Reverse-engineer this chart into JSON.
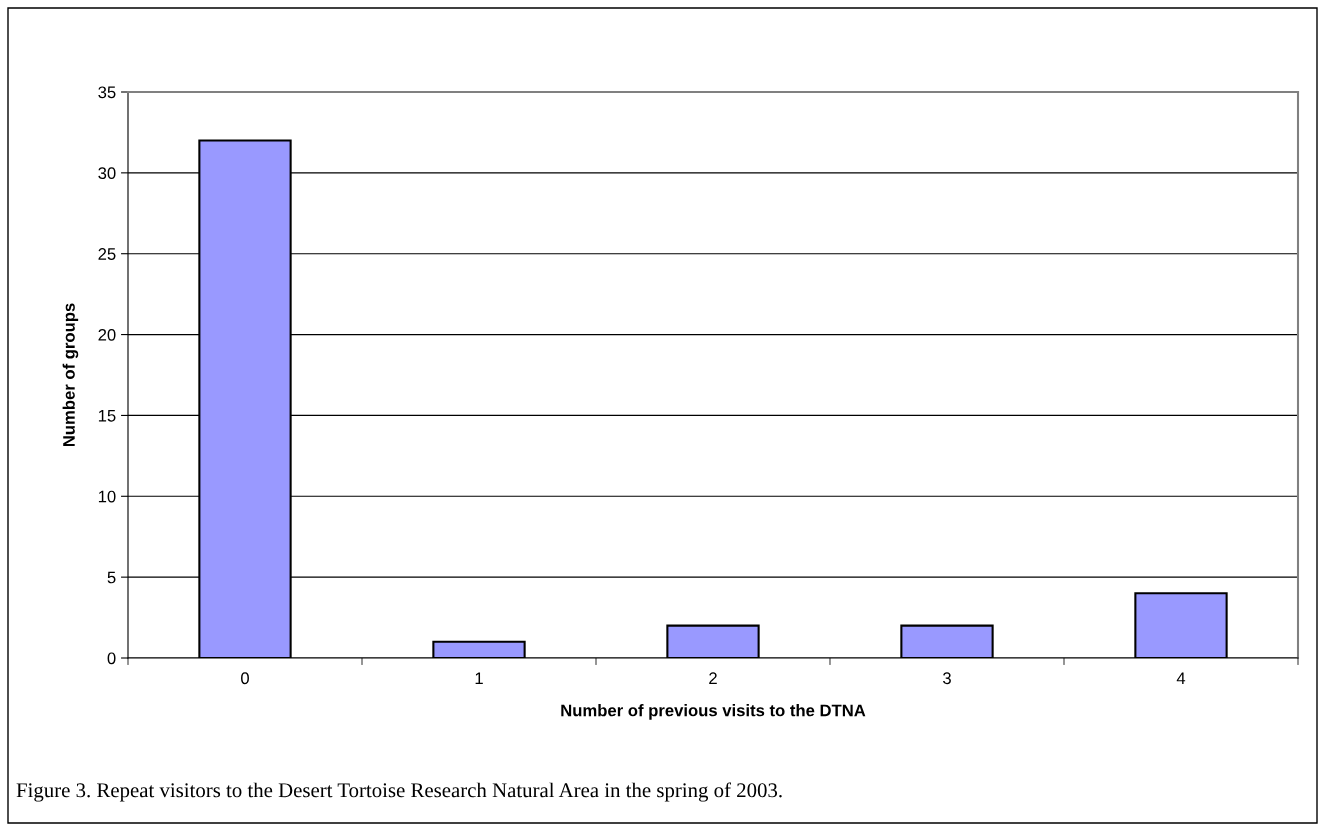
{
  "chart_data": {
    "type": "bar",
    "xlabel": "Number of previous visits to the DTNA",
    "ylabel": "Number of groups",
    "categories": [
      "0",
      "1",
      "2",
      "3",
      "4"
    ],
    "values": [
      32,
      1,
      2,
      2,
      4
    ],
    "color": "#9999ff",
    "ylim": [
      0,
      35
    ],
    "yticks": [
      0,
      5,
      10,
      15,
      20,
      25,
      30,
      35
    ],
    "grid": "y",
    "legend": false,
    "annotations": [
      "Figure 3. Repeat visitors to the Desert Tortoise Research Natural Area in the spring of 2003."
    ]
  }
}
